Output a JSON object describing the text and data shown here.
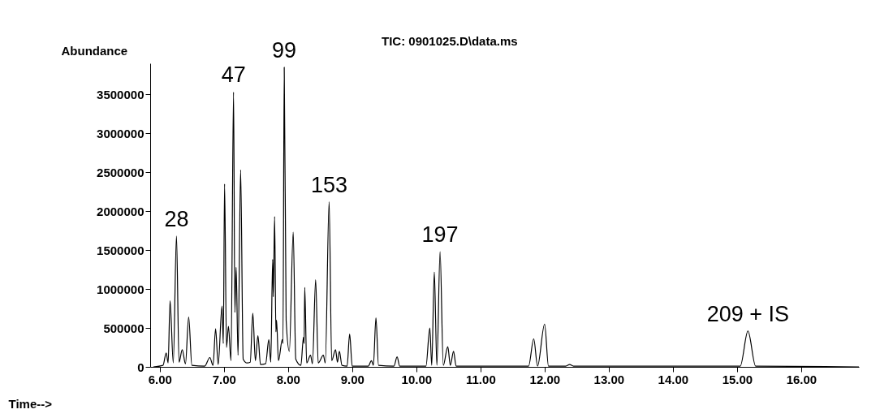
{
  "chart_data": {
    "type": "line",
    "title": "TIC: 0901025.D\\data.ms",
    "xlabel": "Time-->",
    "ylabel": "Abundance",
    "x": [
      5.9,
      6.05,
      6.1,
      6.13,
      6.16,
      6.21,
      6.26,
      6.3,
      6.35,
      6.4,
      6.45,
      6.5,
      6.7,
      6.78,
      6.83,
      6.87,
      6.91,
      6.97,
      6.99,
      7.01,
      7.04,
      7.07,
      7.11,
      7.15,
      7.17,
      7.19,
      7.22,
      7.26,
      7.3,
      7.36,
      7.41,
      7.45,
      7.49,
      7.53,
      7.57,
      7.65,
      7.7,
      7.73,
      7.76,
      7.77,
      7.79,
      7.81,
      7.82,
      7.85,
      7.91,
      7.92,
      7.94,
      7.97,
      8.02,
      8.08,
      8.12,
      8.2,
      8.24,
      8.25,
      8.26,
      8.29,
      8.35,
      8.38,
      8.43,
      8.47,
      8.55,
      8.58,
      8.64,
      8.68,
      8.74,
      8.77,
      8.8,
      8.84,
      8.92,
      8.96,
      9.0,
      9.25,
      9.3,
      9.33,
      9.37,
      9.41,
      9.65,
      9.7,
      9.74,
      10.15,
      10.21,
      10.24,
      10.28,
      10.32,
      10.37,
      10.42,
      10.49,
      10.53,
      10.58,
      10.62,
      11.75,
      11.83,
      11.89,
      12.0,
      12.06,
      12.33,
      12.39,
      12.45,
      15.05,
      15.17,
      15.29,
      16.9
    ],
    "series": [
      {
        "color": "#000000",
        "values": [
          0,
          20000,
          180000,
          50000,
          850000,
          50000,
          1680000,
          60000,
          220000,
          40000,
          640000,
          20000,
          10000,
          120000,
          20000,
          490000,
          30000,
          780000,
          300000,
          2350000,
          250000,
          520000,
          80000,
          3530000,
          700000,
          1280000,
          150000,
          2530000,
          100000,
          50000,
          60000,
          690000,
          80000,
          400000,
          30000,
          40000,
          350000,
          60000,
          1380000,
          900000,
          1930000,
          450000,
          600000,
          80000,
          350000,
          300000,
          3850000,
          600000,
          200000,
          1730000,
          100000,
          20000,
          380000,
          300000,
          1020000,
          50000,
          150000,
          40000,
          1120000,
          50000,
          150000,
          50000,
          2120000,
          80000,
          220000,
          60000,
          200000,
          20000,
          10000,
          420000,
          10000,
          10000,
          80000,
          20000,
          630000,
          20000,
          10000,
          130000,
          10000,
          10000,
          500000,
          20000,
          1220000,
          20000,
          1480000,
          20000,
          260000,
          20000,
          200000,
          10000,
          10000,
          360000,
          10000,
          550000,
          10000,
          10000,
          30000,
          10000,
          10000,
          460000,
          10000,
          0
        ]
      }
    ],
    "xlim": [
      5.85,
      16.9
    ],
    "ylim": [
      0,
      3900000
    ],
    "xticks": [
      {
        "value": 6,
        "label": "6.00"
      },
      {
        "value": 7,
        "label": "7.00"
      },
      {
        "value": 8,
        "label": "8.00"
      },
      {
        "value": 9,
        "label": "9.00"
      },
      {
        "value": 10,
        "label": "10.00"
      },
      {
        "value": 11,
        "label": "11.00"
      },
      {
        "value": 12,
        "label": "12.00"
      },
      {
        "value": 13,
        "label": "13.00"
      },
      {
        "value": 14,
        "label": "14.00"
      },
      {
        "value": 15,
        "label": "15.00"
      },
      {
        "value": 16,
        "label": "16.00"
      }
    ],
    "yticks": [
      0,
      500000,
      1000000,
      1500000,
      2000000,
      2500000,
      3000000,
      3500000
    ],
    "annotations": [
      {
        "text": "28",
        "x": 6.26,
        "y": 1680000
      },
      {
        "text": "47",
        "x": 7.15,
        "y": 3530000
      },
      {
        "text": "99",
        "x": 7.94,
        "y": 3850000
      },
      {
        "text": "153",
        "x": 8.64,
        "y": 2120000
      },
      {
        "text": "197",
        "x": 10.37,
        "y": 1480000
      },
      {
        "text": "209 + IS",
        "x": 15.17,
        "y": 460000
      }
    ],
    "grid": false,
    "legend": false,
    "marker": "none",
    "line_style": "solid"
  }
}
